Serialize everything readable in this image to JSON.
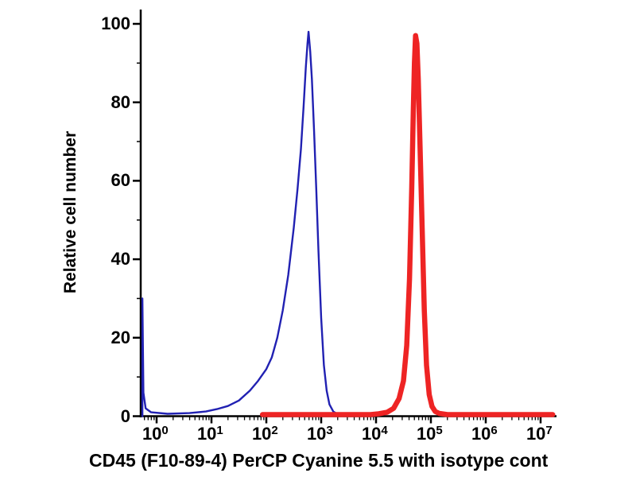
{
  "chart_data": {
    "type": "line",
    "subtype": "flow-cytometry-histogram",
    "title": "",
    "xlabel": "CD45 (F10-89-4) PerCP Cyanine 5.5 with isotype cont",
    "ylabel": "Relative cell number",
    "x_scale": "log10",
    "x_decades": [
      0,
      1,
      2,
      3,
      4,
      5,
      6,
      7
    ],
    "x_tick_base": "10",
    "ylim": [
      0,
      100
    ],
    "y_ticks": [
      0,
      20,
      40,
      60,
      80,
      100
    ],
    "y_minor_ticks": [
      10,
      30,
      50,
      70,
      90
    ],
    "axis_color": "#000000",
    "background": "#ffffff",
    "grid": false,
    "legend": "none",
    "series": [
      {
        "name": "blue-curve",
        "color": "#2121b2",
        "stroke_width": 2.4,
        "peak_log10_x": 2.77,
        "peak_y": 98,
        "points": [
          [
            -0.26,
            0
          ],
          [
            -0.26,
            30
          ],
          [
            -0.24,
            6
          ],
          [
            -0.2,
            2
          ],
          [
            -0.1,
            1
          ],
          [
            0.2,
            0.6
          ],
          [
            0.6,
            0.8
          ],
          [
            0.9,
            1.2
          ],
          [
            1.1,
            1.8
          ],
          [
            1.3,
            2.6
          ],
          [
            1.5,
            4
          ],
          [
            1.7,
            6.5
          ],
          [
            1.85,
            9
          ],
          [
            2.0,
            12
          ],
          [
            2.1,
            15
          ],
          [
            2.2,
            20
          ],
          [
            2.3,
            27
          ],
          [
            2.4,
            36
          ],
          [
            2.5,
            48
          ],
          [
            2.57,
            58
          ],
          [
            2.63,
            68
          ],
          [
            2.68,
            79
          ],
          [
            2.72,
            89
          ],
          [
            2.75,
            95
          ],
          [
            2.77,
            98
          ],
          [
            2.8,
            93
          ],
          [
            2.83,
            86
          ],
          [
            2.87,
            73
          ],
          [
            2.91,
            58
          ],
          [
            2.95,
            42
          ],
          [
            3.0,
            25
          ],
          [
            3.05,
            13
          ],
          [
            3.1,
            6.5
          ],
          [
            3.15,
            3
          ],
          [
            3.22,
            1.2
          ],
          [
            3.3,
            0.5
          ],
          [
            3.4,
            0.2
          ],
          [
            3.45,
            0
          ]
        ]
      },
      {
        "name": "red-curve",
        "color": "#ee2424",
        "stroke_width": 6.5,
        "peak_log10_x": 4.72,
        "peak_y": 97,
        "points": [
          [
            1.93,
            0.4
          ],
          [
            3.9,
            0.4
          ],
          [
            4.05,
            0.6
          ],
          [
            4.2,
            1
          ],
          [
            4.32,
            2
          ],
          [
            4.42,
            4.5
          ],
          [
            4.5,
            9
          ],
          [
            4.56,
            18
          ],
          [
            4.61,
            35
          ],
          [
            4.65,
            58
          ],
          [
            4.68,
            78
          ],
          [
            4.7,
            90
          ],
          [
            4.72,
            97
          ],
          [
            4.745,
            95
          ],
          [
            4.77,
            86
          ],
          [
            4.8,
            70
          ],
          [
            4.84,
            48
          ],
          [
            4.88,
            27
          ],
          [
            4.92,
            13
          ],
          [
            4.97,
            5.5
          ],
          [
            5.02,
            2.5
          ],
          [
            5.08,
            1.2
          ],
          [
            5.15,
            0.7
          ],
          [
            5.3,
            0.4
          ],
          [
            7.22,
            0.4
          ]
        ]
      }
    ]
  }
}
